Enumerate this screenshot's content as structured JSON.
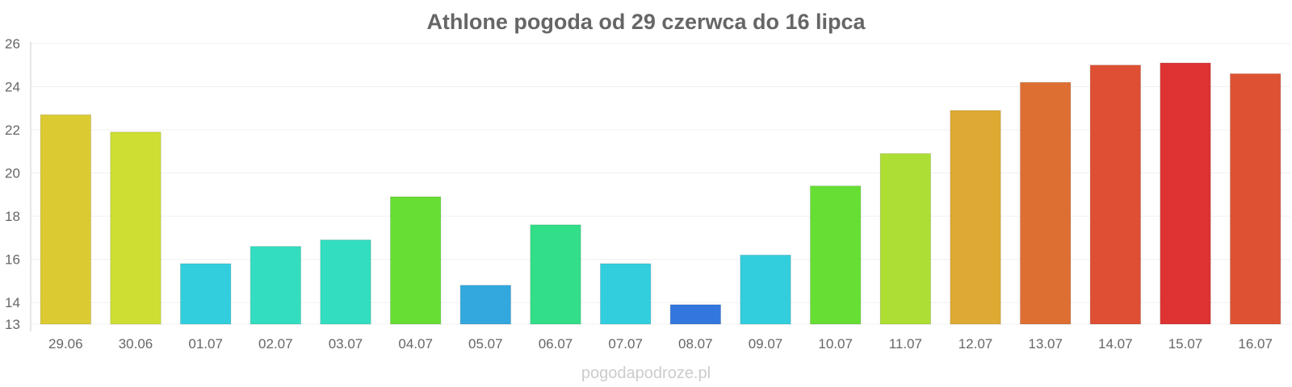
{
  "chart_data": {
    "type": "bar",
    "title": "Athlone pogoda od 29 czerwca do 16 lipca",
    "categories": [
      "29.06",
      "30.06",
      "01.07",
      "02.07",
      "03.07",
      "04.07",
      "05.07",
      "06.07",
      "07.07",
      "08.07",
      "09.07",
      "10.07",
      "11.07",
      "12.07",
      "13.07",
      "14.07",
      "15.07",
      "16.07"
    ],
    "values": [
      22.7,
      21.9,
      15.8,
      16.6,
      16.9,
      18.9,
      14.8,
      17.6,
      15.8,
      13.9,
      16.2,
      19.4,
      20.9,
      22.9,
      24.2,
      25.0,
      25.1,
      24.6
    ],
    "colors": [
      "#dcca33",
      "#cede33",
      "#33cede",
      "#33dec0",
      "#33dec0",
      "#66de33",
      "#33a8de",
      "#33de89",
      "#33cede",
      "#3377de",
      "#33cede",
      "#66de33",
      "#acde33",
      "#deaa33",
      "#de6f33",
      "#de4f33",
      "#de3333",
      "#de5233"
    ],
    "ylim": [
      13,
      26
    ],
    "yticks": [
      13,
      14,
      16,
      18,
      20,
      22,
      24,
      26
    ],
    "grid": true,
    "xlabel": "",
    "ylabel": ""
  },
  "watermark": "pogodapodroze.pl"
}
